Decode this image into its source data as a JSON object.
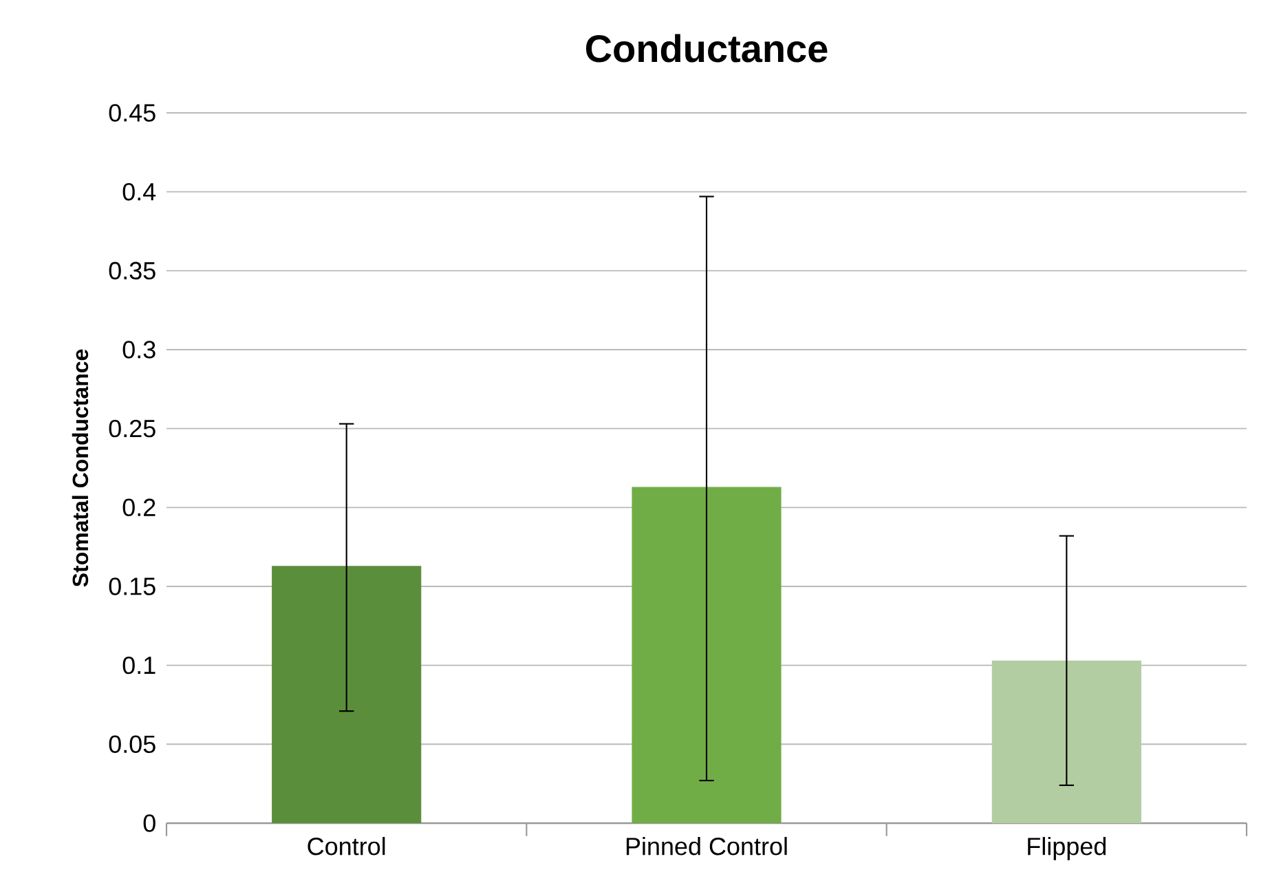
{
  "chart_data": {
    "type": "bar",
    "title": "Conductance",
    "ylabel": "Stomatal Conductance",
    "categories": [
      "Control",
      "Pinned Control",
      "Flipped"
    ],
    "values": [
      0.163,
      0.213,
      0.103
    ],
    "errors": [
      [
        0.071,
        0.253
      ],
      [
        0.027,
        0.397
      ],
      [
        0.024,
        0.182
      ]
    ],
    "colors": [
      "#5b8e3a",
      "#70ad47",
      "#b3cda2"
    ],
    "ylim": [
      0,
      0.45
    ],
    "yticks": [
      0,
      0.05,
      0.1,
      0.15,
      0.2,
      0.25,
      0.3,
      0.35,
      0.4,
      0.45
    ],
    "grid": "y"
  }
}
